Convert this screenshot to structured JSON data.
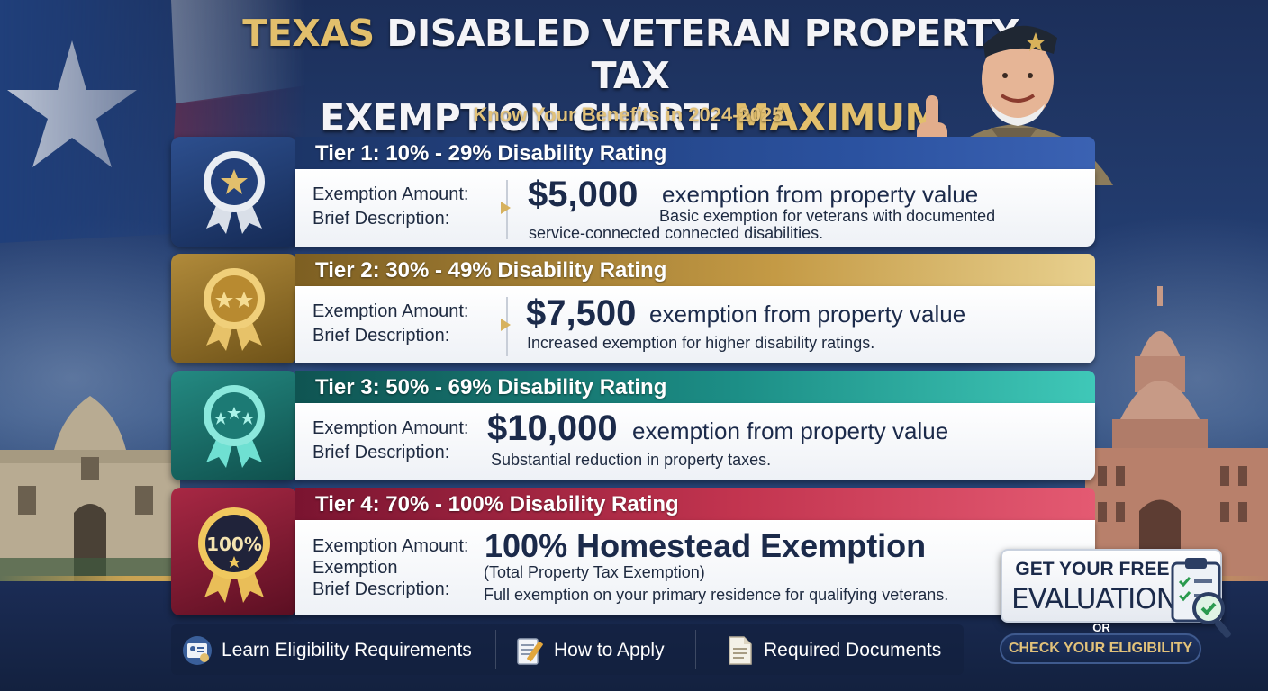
{
  "header": {
    "title_part1": "Texas",
    "title_part2": " Disabled Veteran Property Tax",
    "title_part3": "Exemption Chart: ",
    "title_part4": "Maximum Savings",
    "subtitle": "Know Your Benefits in 2024-2025"
  },
  "labels": {
    "exemption_amount": "Exemption Amount:",
    "brief_description": "Brief Description:",
    "exemption": "Exemption"
  },
  "tiers": [
    {
      "label": "Tier 1: 10% - 29% Disability Rating",
      "amount": "$5,000",
      "amount_suffix": "exemption from property value",
      "description_line1": "Basic exemption for veterans with documented",
      "description_line2": "service-connected connected disabilities.",
      "color": "#2b52a0"
    },
    {
      "label": "Tier 2: 30% - 49% Disability Rating",
      "amount": "$7,500",
      "amount_suffix": "exemption from property value",
      "description_line1": "Increased exemption for higher disability ratings.",
      "color": "#c49a45"
    },
    {
      "label": "Tier 3: 50% - 69% Disability Rating",
      "amount": "$10,000",
      "amount_suffix": "exemption from property value",
      "description_line1": "Substantial reduction in property taxes.",
      "color": "#1c8e86"
    },
    {
      "label": "Tier 4: 70% - 100% Disability Rating",
      "amount": "100% Homestead Exemption",
      "amount_sub": "(Total Property Tax Exemption)",
      "description_line1": "Full exemption on your primary residence for qualifying veterans.",
      "badge_text": "100%",
      "color": "#c2344f"
    }
  ],
  "cta": {
    "line1": "GET YOUR FREE",
    "line2": "EVALUATION",
    "or": "OR",
    "check_button": "CHECK YOUR ELIGIBILITY"
  },
  "links": [
    {
      "label": "Learn Eligibility Requirements",
      "icon": "id-card-icon"
    },
    {
      "label": "How to Apply",
      "icon": "notepad-pencil-icon"
    },
    {
      "label": "Required Documents",
      "icon": "document-icon"
    }
  ]
}
